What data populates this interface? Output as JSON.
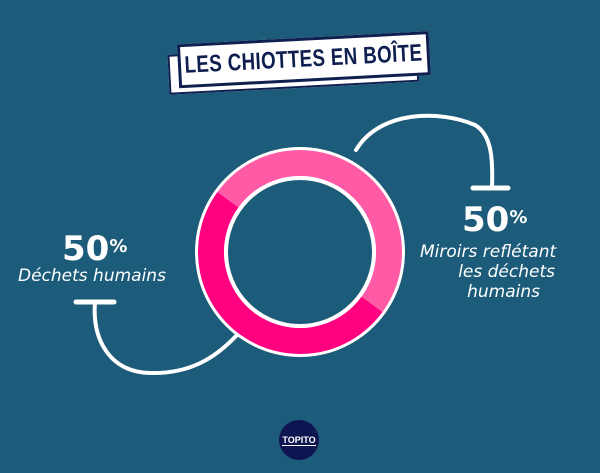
{
  "title": "LES CHIOTTES EN BOÎTE",
  "chart_data": {
    "type": "pie",
    "variant": "donut",
    "title": "LES CHIOTTES EN BOÎTE",
    "slices": [
      {
        "label": "Miroirs reflétant les déchets humains",
        "value": 50,
        "display": "50",
        "color": "#ff5aa5"
      },
      {
        "label": "Déchets humains",
        "value": 50,
        "display": "50",
        "color": "#ff0080"
      }
    ]
  },
  "labels": {
    "left": {
      "percent": "50",
      "percent_sign": "%",
      "text": "Déchets humains"
    },
    "right": {
      "percent": "50",
      "percent_sign": "%",
      "line1": "Miroirs reflétant",
      "line2": "les déchets",
      "line3": "humains"
    }
  },
  "logo": "TOPITO",
  "colors": {
    "background": "#1c5b79",
    "outline": "#ffffff",
    "title_ink": "#0f1f4f"
  }
}
